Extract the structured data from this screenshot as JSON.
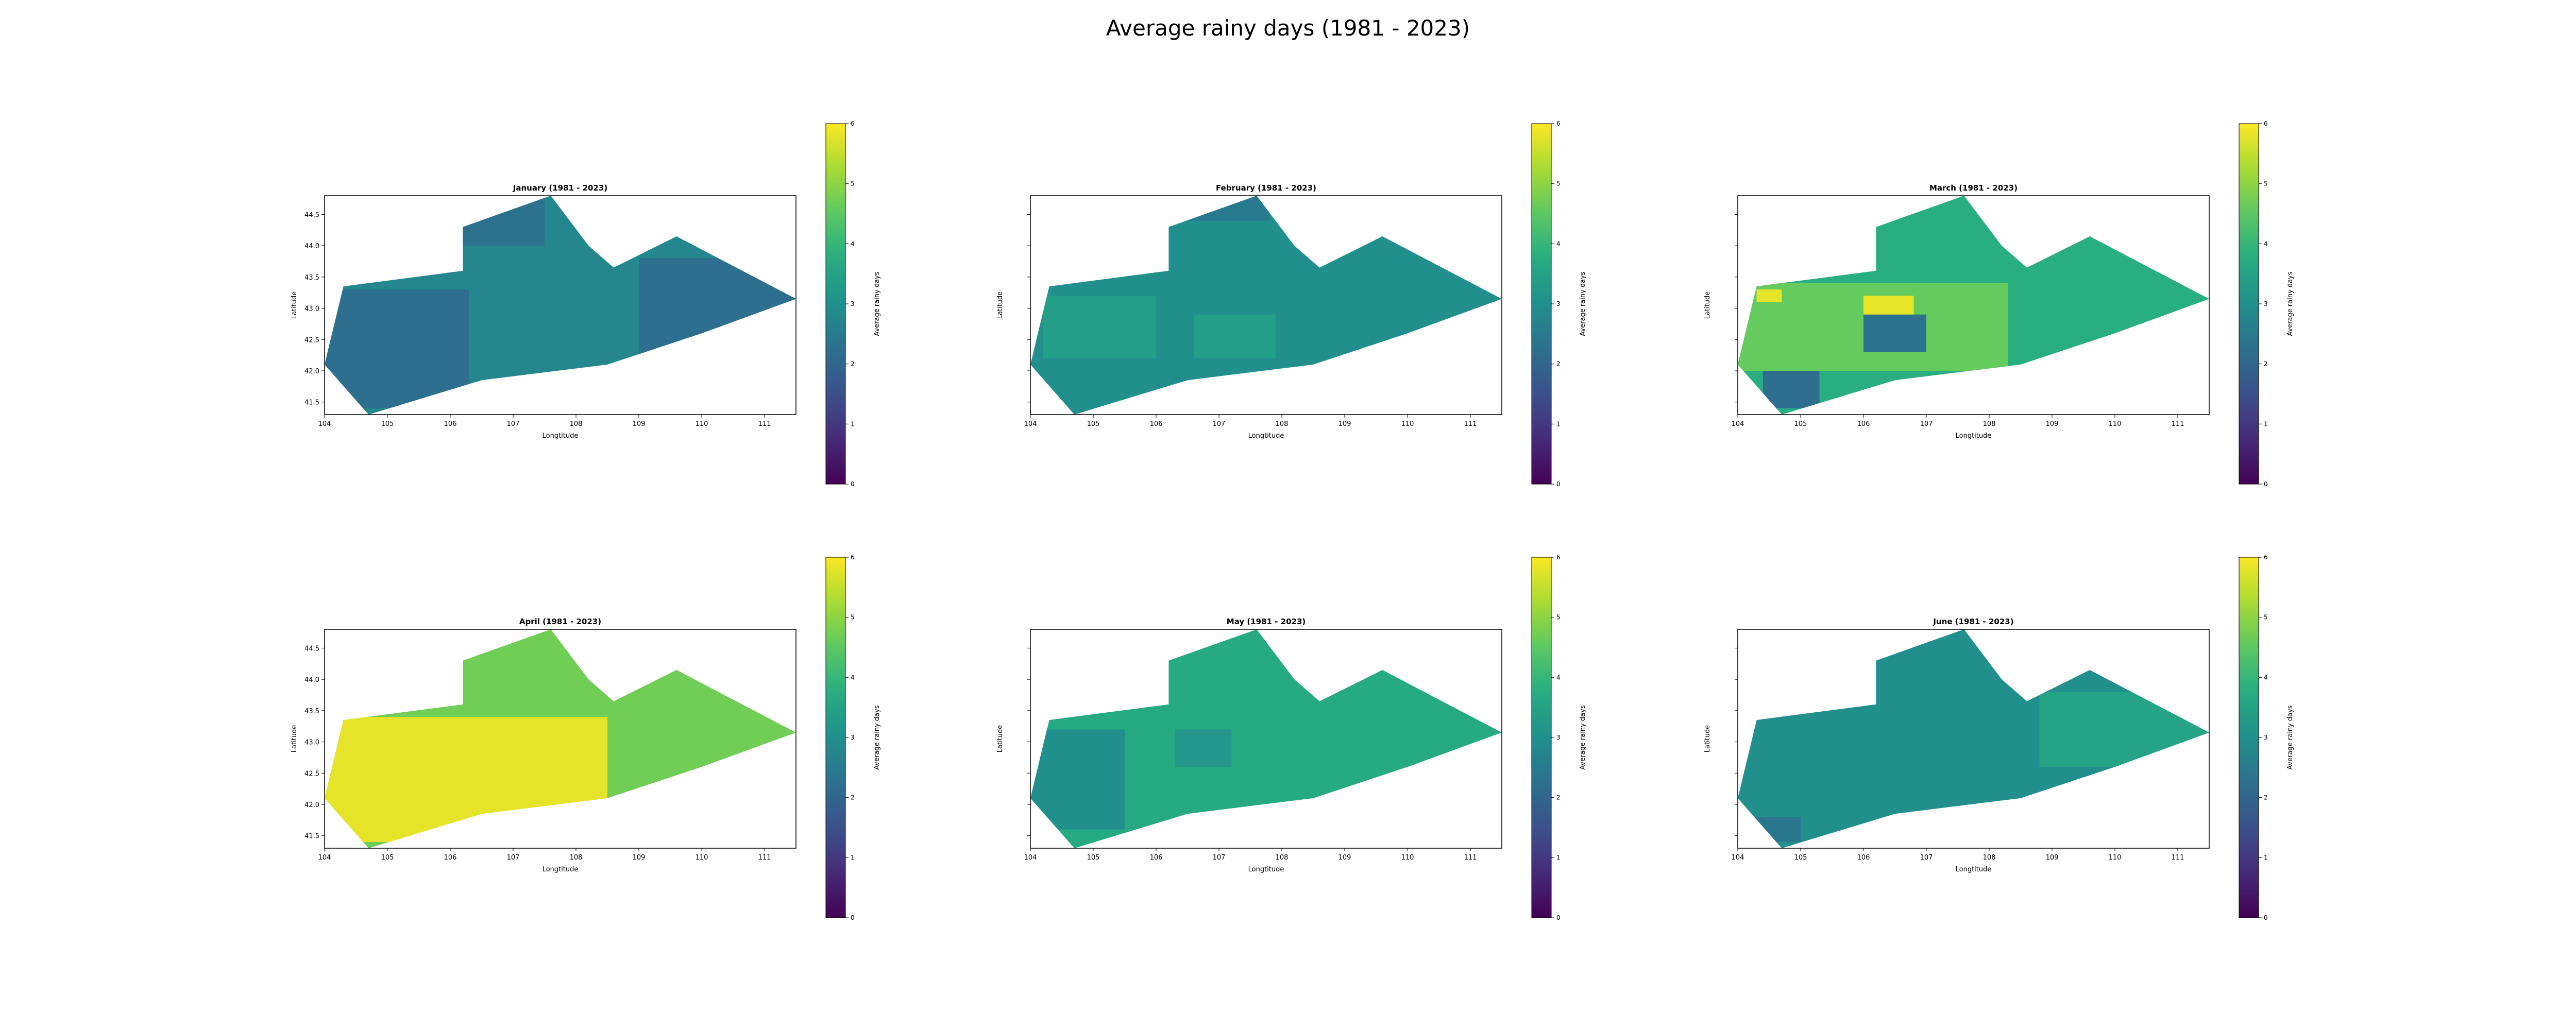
{
  "figure": {
    "title": "Average rainy days (1981 - 2023)"
  },
  "chart_data": [
    {
      "type": "heatmap",
      "title": "January (1981 - 2023)",
      "xlabel": "Longtitude",
      "ylabel": "Latitude",
      "xlim": [
        104,
        111.5
      ],
      "ylim": [
        41.3,
        44.8
      ],
      "xticks": [
        "104",
        "105",
        "106",
        "107",
        "108",
        "109",
        "110",
        "111"
      ],
      "yticks": [
        "41.5",
        "42.0",
        "42.5",
        "43.0",
        "43.5",
        "44.0",
        "44.5"
      ],
      "colorbar": {
        "label": "Average rainy days",
        "min": 0,
        "max": 6,
        "ticks": [
          "0",
          "1",
          "2",
          "3",
          "4",
          "5",
          "6"
        ]
      },
      "dominant_value": 2.8,
      "regions": [
        {
          "x": [
            104.0,
            106.3
          ],
          "y": [
            41.4,
            43.3
          ],
          "value": 2.2
        },
        {
          "x": [
            109.0,
            111.5
          ],
          "y": [
            42.0,
            43.8
          ],
          "value": 2.2
        },
        {
          "x": [
            106.0,
            107.5
          ],
          "y": [
            44.0,
            44.8
          ],
          "value": 2.3
        }
      ]
    },
    {
      "type": "heatmap",
      "title": "February (1981 - 2023)",
      "xlabel": "Longtitude",
      "ylabel": "Latitude",
      "xlim": [
        104,
        111.5
      ],
      "ylim": [
        41.3,
        44.8
      ],
      "xticks": [
        "104",
        "105",
        "106",
        "107",
        "108",
        "109",
        "110",
        "111"
      ],
      "yticks": [],
      "colorbar": {
        "label": "Average rainy days",
        "min": 0,
        "max": 6,
        "ticks": [
          "0",
          "1",
          "2",
          "3",
          "4",
          "5",
          "6"
        ]
      },
      "dominant_value": 3.0,
      "regions": [
        {
          "x": [
            104.2,
            106.0
          ],
          "y": [
            42.2,
            43.2
          ],
          "value": 3.4
        },
        {
          "x": [
            106.6,
            107.9
          ],
          "y": [
            42.2,
            42.9
          ],
          "value": 3.4
        },
        {
          "x": [
            106.5,
            107.8
          ],
          "y": [
            44.4,
            44.8
          ],
          "value": 2.5
        }
      ]
    },
    {
      "type": "heatmap",
      "title": "March (1981 - 2023)",
      "xlabel": "Longtitude",
      "ylabel": "Latitude",
      "xlim": [
        104,
        111.5
      ],
      "ylim": [
        41.3,
        44.8
      ],
      "xticks": [
        "104",
        "105",
        "106",
        "107",
        "108",
        "109",
        "110",
        "111"
      ],
      "yticks": [],
      "colorbar": {
        "label": "Average rainy days",
        "min": 0,
        "max": 6,
        "ticks": [
          "0",
          "1",
          "2",
          "3",
          "4",
          "5",
          "6"
        ]
      },
      "dominant_value": 3.8,
      "regions": [
        {
          "x": [
            104.0,
            108.3
          ],
          "y": [
            42.0,
            43.4
          ],
          "value": 4.6
        },
        {
          "x": [
            104.4,
            105.3
          ],
          "y": [
            41.4,
            42.0
          ],
          "value": 2.2
        },
        {
          "x": [
            106.0,
            107.0
          ],
          "y": [
            42.3,
            42.9
          ],
          "value": 2.3
        },
        {
          "x": [
            106.0,
            106.8
          ],
          "y": [
            42.9,
            43.2
          ],
          "value": 5.8
        },
        {
          "x": [
            104.3,
            104.7
          ],
          "y": [
            43.1,
            43.3
          ],
          "value": 5.8
        }
      ]
    },
    {
      "type": "heatmap",
      "title": "April (1981 - 2023)",
      "xlabel": "Longtitude",
      "ylabel": "Latitude",
      "xlim": [
        104,
        111.5
      ],
      "ylim": [
        41.3,
        44.8
      ],
      "xticks": [
        "104",
        "105",
        "106",
        "107",
        "108",
        "109",
        "110",
        "111"
      ],
      "yticks": [
        "41.5",
        "42.0",
        "42.5",
        "43.0",
        "43.5",
        "44.0",
        "44.5"
      ],
      "colorbar": {
        "label": "Average rainy days",
        "min": 0,
        "max": 6,
        "ticks": [
          "0",
          "1",
          "2",
          "3",
          "4",
          "5",
          "6"
        ]
      },
      "dominant_value": 4.7,
      "regions": [
        {
          "x": [
            104.0,
            108.5
          ],
          "y": [
            41.4,
            43.4
          ],
          "value": 5.8
        }
      ]
    },
    {
      "type": "heatmap",
      "title": "May (1981 - 2023)",
      "xlabel": "Longtitude",
      "ylabel": "Latitude",
      "xlim": [
        104,
        111.5
      ],
      "ylim": [
        41.3,
        44.8
      ],
      "xticks": [
        "104",
        "105",
        "106",
        "107",
        "108",
        "109",
        "110",
        "111"
      ],
      "yticks": [],
      "colorbar": {
        "label": "Average rainy days",
        "min": 0,
        "max": 6,
        "ticks": [
          "0",
          "1",
          "2",
          "3",
          "4",
          "5",
          "6"
        ]
      },
      "dominant_value": 3.7,
      "regions": [
        {
          "x": [
            104.0,
            105.5
          ],
          "y": [
            41.6,
            43.2
          ],
          "value": 3.0
        },
        {
          "x": [
            106.3,
            107.2
          ],
          "y": [
            42.6,
            43.2
          ],
          "value": 3.2
        }
      ]
    },
    {
      "type": "heatmap",
      "title": "June (1981 - 2023)",
      "xlabel": "Longtitude",
      "ylabel": "Latitude",
      "xlim": [
        104,
        111.5
      ],
      "ylim": [
        41.3,
        44.8
      ],
      "xticks": [
        "104",
        "105",
        "106",
        "107",
        "108",
        "109",
        "110",
        "111"
      ],
      "yticks": [],
      "colorbar": {
        "label": "Average rainy days",
        "min": 0,
        "max": 6,
        "ticks": [
          "0",
          "1",
          "2",
          "3",
          "4",
          "5",
          "6"
        ]
      },
      "dominant_value": 3.0,
      "regions": [
        {
          "x": [
            108.8,
            111.5
          ],
          "y": [
            42.6,
            43.8
          ],
          "value": 3.5
        },
        {
          "x": [
            104.0,
            105.0
          ],
          "y": [
            41.4,
            41.8
          ],
          "value": 2.4
        }
      ]
    }
  ]
}
